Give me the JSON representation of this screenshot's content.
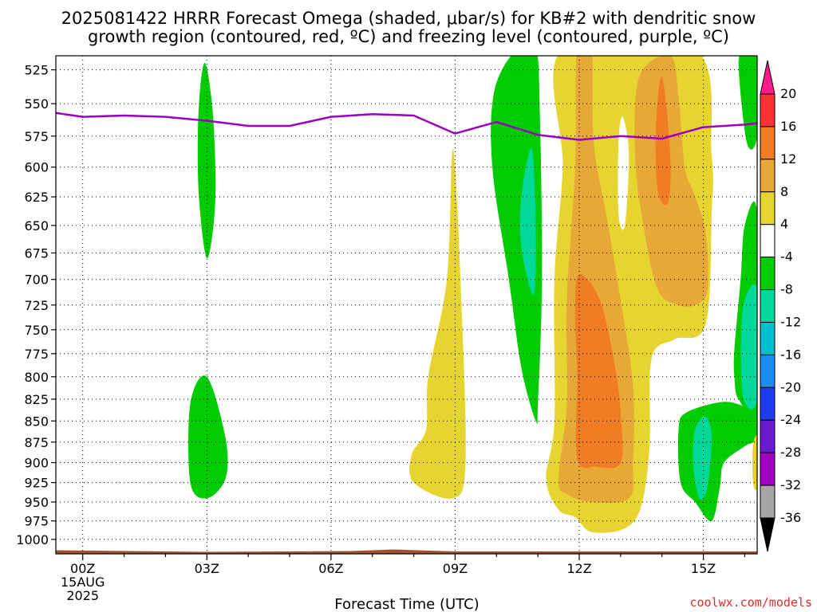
{
  "chart_data": {
    "type": "heatmap",
    "title": [
      "2025081422 HRRR Forecast Omega (shaded, μbar/s) for KB#2 with dendritic snow",
      "growth region (contoured, red, ºC) and freezing level (contoured, purple, ºC)"
    ],
    "xlabel": "Forecast Time (UTC)",
    "ylabel": "",
    "x_unit": "forecast hour (hours after 00Z 15AUG2025)",
    "xlim": [
      -0.65,
      16.3
    ],
    "ylim_hpa": [
      1020,
      515
    ],
    "y_scale": "pressure (hPa), increasing downward",
    "x_ticks": [
      {
        "value": 0,
        "label": [
          "00Z",
          "15AUG",
          "2025"
        ]
      },
      {
        "value": 3,
        "label": [
          "03Z"
        ]
      },
      {
        "value": 6,
        "label": [
          "06Z"
        ]
      },
      {
        "value": 9,
        "label": [
          "09Z"
        ]
      },
      {
        "value": 12,
        "label": [
          "12Z"
        ]
      },
      {
        "value": 15,
        "label": [
          "15Z"
        ]
      }
    ],
    "y_ticks": [
      525,
      550,
      575,
      600,
      625,
      650,
      675,
      700,
      725,
      750,
      775,
      800,
      825,
      850,
      875,
      900,
      925,
      950,
      975,
      1000
    ],
    "grid": true,
    "freezing_level": {
      "color": "#9a00c0",
      "points": [
        [
          -0.65,
          557
        ],
        [
          0,
          560
        ],
        [
          1,
          559
        ],
        [
          2,
          560
        ],
        [
          3,
          563
        ],
        [
          4,
          567
        ],
        [
          5,
          567
        ],
        [
          6,
          560
        ],
        [
          7,
          558
        ],
        [
          8,
          559
        ],
        [
          9,
          573
        ],
        [
          10,
          564
        ],
        [
          11,
          574
        ],
        [
          12,
          578
        ],
        [
          13,
          575
        ],
        [
          14,
          577
        ],
        [
          15,
          568
        ],
        [
          16,
          566
        ],
        [
          16.3,
          565
        ]
      ]
    },
    "ground": {
      "color": "#a0522d",
      "pressure_hpa": 1015
    },
    "colorbar": {
      "labels": [
        "20",
        "16",
        "12",
        "8",
        "4",
        "-4",
        "-8",
        "-12",
        "-16",
        "-20",
        "-24",
        "-28",
        "-32",
        "-36"
      ],
      "colors": [
        "#ff1a8c",
        "#ff3333",
        "#f07c24",
        "#e8a838",
        "#e6d530",
        "#ffffff",
        "#00cc00",
        "#00d99a",
        "#00c0d0",
        "#1b8cf0",
        "#1c3ef0",
        "#6a1ad0",
        "#a000c0",
        "#a6a6a6",
        "#000000"
      ]
    },
    "omega_regions": [
      {
        "value": -4,
        "color": "#00cc00",
        "points": [
          [
            2.95,
            520
          ],
          [
            3.15,
            560
          ],
          [
            3.2,
            630
          ],
          [
            3.0,
            680
          ],
          [
            2.8,
            620
          ],
          [
            2.8,
            555
          ]
        ]
      },
      {
        "value": -4,
        "color": "#00cc00",
        "points": [
          [
            3.0,
            800
          ],
          [
            3.45,
            870
          ],
          [
            3.45,
            920
          ],
          [
            3.0,
            945
          ],
          [
            2.6,
            925
          ],
          [
            2.6,
            830
          ]
        ]
      },
      {
        "value": 4,
        "color": "#e6d530",
        "points": [
          [
            8.95,
            585
          ],
          [
            9.15,
            720
          ],
          [
            9.25,
            900
          ],
          [
            8.95,
            945
          ],
          [
            8.0,
            925
          ],
          [
            7.95,
            890
          ],
          [
            8.3,
            860
          ],
          [
            8.35,
            800
          ],
          [
            8.8,
            700
          ]
        ]
      },
      {
        "value": -4,
        "color": "#00cc00",
        "points": [
          [
            9.95,
            540
          ],
          [
            10.5,
            510
          ],
          [
            10.95,
            510
          ],
          [
            11.05,
            560
          ],
          [
            11.1,
            700
          ],
          [
            11.0,
            830
          ],
          [
            10.95,
            850
          ],
          [
            10.6,
            790
          ],
          [
            10.3,
            700
          ],
          [
            9.9,
            600
          ]
        ]
      },
      {
        "value": -8,
        "color": "#00d99a",
        "points": [
          [
            10.85,
            585
          ],
          [
            10.95,
            650
          ],
          [
            10.9,
            715
          ],
          [
            10.6,
            670
          ],
          [
            10.6,
            625
          ]
        ]
      },
      {
        "value": 4,
        "color": "#e6d530",
        "points": [
          [
            11.6,
            510
          ],
          [
            14.8,
            510
          ],
          [
            15.2,
            590
          ],
          [
            15.2,
            640
          ],
          [
            15.05,
            745
          ],
          [
            14.3,
            760
          ],
          [
            13.75,
            780
          ],
          [
            13.7,
            880
          ],
          [
            13.5,
            955
          ],
          [
            13.1,
            985
          ],
          [
            12.3,
            990
          ],
          [
            11.9,
            970
          ],
          [
            11.5,
            960
          ],
          [
            11.2,
            920
          ],
          [
            11.4,
            850
          ],
          [
            11.4,
            700
          ],
          [
            11.6,
            600
          ]
        ]
      },
      {
        "value": 8,
        "color": "#e8a838",
        "points": [
          [
            11.95,
            510
          ],
          [
            12.3,
            510
          ],
          [
            12.35,
            580
          ],
          [
            12.7,
            650
          ],
          [
            13.0,
            720
          ],
          [
            13.3,
            810
          ],
          [
            13.3,
            900
          ],
          [
            13.2,
            945
          ],
          [
            12.3,
            950
          ],
          [
            11.7,
            940
          ],
          [
            11.5,
            920
          ],
          [
            11.7,
            830
          ],
          [
            11.7,
            720
          ],
          [
            11.9,
            600
          ]
        ]
      },
      {
        "value": 8,
        "color": "#e8a838",
        "points": [
          [
            13.45,
            530
          ],
          [
            14.2,
            515
          ],
          [
            14.4,
            545
          ],
          [
            14.55,
            600
          ],
          [
            14.75,
            620
          ],
          [
            15.05,
            655
          ],
          [
            15.1,
            710
          ],
          [
            14.8,
            725
          ],
          [
            14.4,
            725
          ],
          [
            13.9,
            710
          ],
          [
            13.55,
            650
          ],
          [
            13.35,
            590
          ]
        ]
      },
      {
        "value": 12,
        "color": "#f07c24",
        "points": [
          [
            12.0,
            695
          ],
          [
            12.5,
            720
          ],
          [
            12.85,
            785
          ],
          [
            13.0,
            840
          ],
          [
            13.0,
            900
          ],
          [
            12.4,
            905
          ],
          [
            11.95,
            895
          ],
          [
            11.95,
            800
          ],
          [
            11.9,
            730
          ]
        ]
      },
      {
        "value": 12,
        "color": "#f07c24",
        "points": [
          [
            14.0,
            530
          ],
          [
            14.2,
            590
          ],
          [
            14.15,
            630
          ],
          [
            13.9,
            620
          ],
          [
            13.85,
            570
          ]
        ]
      },
      {
        "value": 0,
        "color": "#ffffff",
        "points": [
          [
            12.95,
            580
          ],
          [
            13.05,
            560
          ],
          [
            13.2,
            590
          ],
          [
            13.1,
            650
          ],
          [
            12.95,
            640
          ]
        ]
      },
      {
        "value": -4,
        "color": "#00cc00",
        "points": [
          [
            15.5,
            828
          ],
          [
            16.1,
            835
          ],
          [
            16.3,
            835
          ],
          [
            16.3,
            870
          ],
          [
            16.0,
            880
          ],
          [
            15.5,
            900
          ],
          [
            15.4,
            930
          ],
          [
            15.2,
            975
          ],
          [
            14.8,
            950
          ],
          [
            14.45,
            925
          ],
          [
            14.4,
            860
          ],
          [
            14.6,
            840
          ]
        ]
      },
      {
        "value": -8,
        "color": "#00d99a",
        "points": [
          [
            15.05,
            845
          ],
          [
            15.2,
            870
          ],
          [
            15.1,
            930
          ],
          [
            14.9,
            945
          ],
          [
            14.75,
            900
          ],
          [
            14.8,
            860
          ]
        ]
      },
      {
        "value": -4,
        "color": "#00cc00",
        "points": [
          [
            15.75,
            770
          ],
          [
            15.9,
            700
          ],
          [
            16.0,
            650
          ],
          [
            16.3,
            640
          ],
          [
            16.3,
            830
          ],
          [
            15.85,
            825
          ],
          [
            15.75,
            800
          ]
        ]
      },
      {
        "value": -8,
        "color": "#00d99a",
        "points": [
          [
            15.95,
            730
          ],
          [
            16.3,
            710
          ],
          [
            16.3,
            825
          ],
          [
            15.95,
            820
          ]
        ]
      },
      {
        "value": -4,
        "color": "#00cc00",
        "points": [
          [
            15.85,
            520
          ],
          [
            16.05,
            515
          ],
          [
            16.3,
            515
          ],
          [
            16.3,
            575
          ],
          [
            16.05,
            580
          ]
        ]
      },
      {
        "value": 4,
        "color": "#e6d530",
        "points": [
          [
            16.2,
            880
          ],
          [
            16.3,
            870
          ],
          [
            16.3,
            930
          ],
          [
            16.2,
            925
          ]
        ]
      }
    ]
  },
  "credit": "coolwx.com/models"
}
